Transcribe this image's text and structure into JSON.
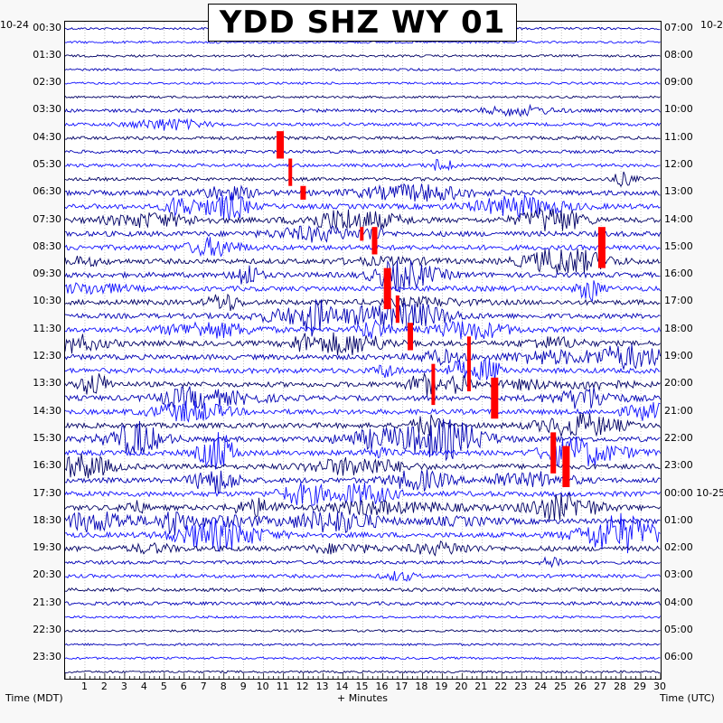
{
  "chart_data": {
    "type": "line",
    "title": "YDD SHZ WY 01",
    "xlabel": "+ Minutes",
    "left_axis_title": "Time (MDT)",
    "right_axis_title": "Time (UTC)",
    "left_date_label": "10-24",
    "right_date_label": "10-2",
    "xlim": [
      0,
      30
    ],
    "x_ticks": [
      "1",
      "2",
      "3",
      "4",
      "5",
      "6",
      "7",
      "8",
      "9",
      "10",
      "11",
      "12",
      "13",
      "14",
      "15",
      "16",
      "17",
      "18",
      "19",
      "20",
      "21",
      "22",
      "23",
      "24",
      "25",
      "26",
      "27",
      "28",
      "29",
      "30"
    ],
    "left_tick_labels": [
      "00:30",
      "01:30",
      "02:30",
      "03:30",
      "04:30",
      "05:30",
      "06:30",
      "07:30",
      "08:30",
      "09:30",
      "10:30",
      "11:30",
      "12:30",
      "13:30",
      "14:30",
      "15:30",
      "16:30",
      "17:30",
      "18:30",
      "19:30",
      "20:30",
      "21:30",
      "22:30",
      "23:30"
    ],
    "right_tick_labels": [
      "07:00",
      "08:00",
      "09:00",
      "10:00",
      "11:00",
      "12:00",
      "13:00",
      "14:00",
      "15:00",
      "16:00",
      "17:00",
      "18:00",
      "19:00",
      "20:00",
      "21:00",
      "22:00",
      "23:00",
      "00:00 10-25",
      "01:00",
      "02:00",
      "03:00",
      "04:00",
      "05:00",
      "06:00"
    ],
    "trace_colors": [
      "#0000b4",
      "#1010ff",
      "#000066"
    ],
    "clip_color": "#ff0000",
    "grid": true
  }
}
